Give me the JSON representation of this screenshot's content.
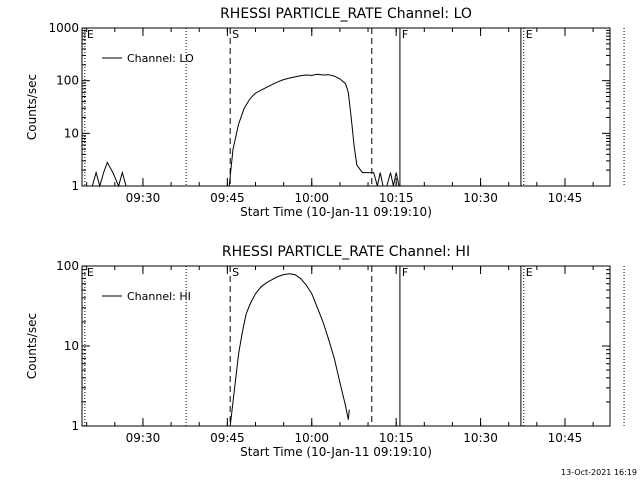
{
  "footer": "13-Oct-2021 16:19",
  "chart_data": [
    {
      "type": "line",
      "title": "RHESSI PARTICLE_RATE Channel: LO",
      "xlabel": "Start Time (10-Jan-11 09:19:10)",
      "ylabel": "Counts/sec",
      "y_scale": "log",
      "ylim": [
        1,
        1000
      ],
      "y_ticks": [
        "1",
        "10",
        "100",
        "1000"
      ],
      "x_ticks": [
        "09:30",
        "09:45",
        "10:00",
        "10:15",
        "10:30",
        "10:45"
      ],
      "xlim": [
        "09:19:10",
        "10:53:00"
      ],
      "legend": "top-left",
      "series": [
        {
          "name": "Channel: LO",
          "points": [
            [
              "09:21:00",
              1
            ],
            [
              "09:21:40",
              1.8
            ],
            [
              "09:22:20",
              1
            ],
            [
              "09:23:00",
              1.8
            ],
            [
              "09:23:40",
              2.8
            ],
            [
              "09:24:40",
              1.8
            ],
            [
              "09:25:40",
              1
            ],
            [
              "09:26:20",
              1.8
            ],
            [
              "09:27:00",
              1
            ],
            [
              "09:45:20",
              1
            ],
            [
              "09:46:00",
              5
            ],
            [
              "09:47:00",
              15
            ],
            [
              "09:48:00",
              30
            ],
            [
              "09:49:00",
              45
            ],
            [
              "09:50:00",
              58
            ],
            [
              "09:51:00",
              66
            ],
            [
              "09:52:00",
              75
            ],
            [
              "09:53:00",
              85
            ],
            [
              "09:54:00",
              95
            ],
            [
              "09:55:00",
              105
            ],
            [
              "09:56:00",
              112
            ],
            [
              "09:57:00",
              118
            ],
            [
              "09:58:00",
              124
            ],
            [
              "09:59:00",
              128
            ],
            [
              "10:00:00",
              126
            ],
            [
              "10:01:00",
              132
            ],
            [
              "10:02:00",
              128
            ],
            [
              "10:03:00",
              130
            ],
            [
              "10:04:00",
              122
            ],
            [
              "10:05:00",
              108
            ],
            [
              "10:06:00",
              88
            ],
            [
              "10:06:30",
              60
            ],
            [
              "10:07:00",
              20
            ],
            [
              "10:07:30",
              6
            ],
            [
              "10:08:00",
              2.5
            ],
            [
              "10:09:00",
              1.8
            ],
            [
              "10:10:00",
              1.8
            ],
            [
              "10:11:00",
              1.8
            ],
            [
              "10:11:40",
              1
            ],
            [
              "10:12:10",
              1.8
            ],
            [
              "10:12:40",
              1
            ],
            [
              "10:13:20",
              1
            ],
            [
              "10:14:00",
              1.8
            ],
            [
              "10:14:30",
              1
            ],
            [
              "10:15:00",
              1.8
            ],
            [
              "10:15:30",
              1
            ]
          ]
        }
      ],
      "markers": [
        {
          "time": "09:19:40",
          "label": "E",
          "style": "dotted"
        },
        {
          "time": "09:37:40",
          "label": "",
          "style": "dotted"
        },
        {
          "time": "09:45:30",
          "label": "S",
          "style": "dashed"
        },
        {
          "time": "10:10:40",
          "label": "",
          "style": "dashed"
        },
        {
          "time": "10:15:40",
          "label": "F",
          "style": "solid"
        },
        {
          "time": "10:37:10",
          "label": "",
          "style": "solid"
        },
        {
          "time": "10:37:40",
          "label": "E",
          "style": "dotted"
        },
        {
          "time": "10:55:30",
          "label": "",
          "style": "dotted"
        }
      ]
    },
    {
      "type": "line",
      "title": "RHESSI PARTICLE_RATE Channel: HI",
      "xlabel": "Start Time (10-Jan-11 09:19:10)",
      "ylabel": "Counts/sec",
      "y_scale": "log",
      "ylim": [
        1,
        100
      ],
      "y_ticks": [
        "1",
        "10",
        "100"
      ],
      "x_ticks": [
        "09:30",
        "09:45",
        "10:00",
        "10:15",
        "10:30",
        "10:45"
      ],
      "xlim": [
        "09:19:10",
        "10:53:00"
      ],
      "legend": "top-left",
      "series": [
        {
          "name": "Channel: HI",
          "points": [
            [
              "09:45:30",
              1
            ],
            [
              "09:46:00",
              2
            ],
            [
              "09:46:30",
              4
            ],
            [
              "09:47:00",
              8
            ],
            [
              "09:47:40",
              15
            ],
            [
              "09:48:20",
              25
            ],
            [
              "09:49:00",
              33
            ],
            [
              "09:50:00",
              45
            ],
            [
              "09:51:00",
              55
            ],
            [
              "09:52:00",
              62
            ],
            [
              "09:53:00",
              68
            ],
            [
              "09:54:00",
              74
            ],
            [
              "09:55:00",
              78
            ],
            [
              "09:56:00",
              80
            ],
            [
              "09:57:00",
              78
            ],
            [
              "09:58:00",
              70
            ],
            [
              "09:59:00",
              58
            ],
            [
              "10:00:00",
              45
            ],
            [
              "10:01:00",
              30
            ],
            [
              "10:02:00",
              20
            ],
            [
              "10:03:00",
              12
            ],
            [
              "10:04:00",
              7
            ],
            [
              "10:05:00",
              3.5
            ],
            [
              "10:06:00",
              1.8
            ],
            [
              "10:06:30",
              1.2
            ],
            [
              "10:06:40",
              1.6
            ]
          ]
        }
      ],
      "markers": [
        {
          "time": "09:19:40",
          "label": "E",
          "style": "dotted"
        },
        {
          "time": "09:37:40",
          "label": "",
          "style": "dotted"
        },
        {
          "time": "09:45:30",
          "label": "S",
          "style": "dashed"
        },
        {
          "time": "10:10:40",
          "label": "",
          "style": "dashed"
        },
        {
          "time": "10:15:40",
          "label": "F",
          "style": "solid"
        },
        {
          "time": "10:37:10",
          "label": "",
          "style": "solid"
        },
        {
          "time": "10:37:40",
          "label": "E",
          "style": "dotted"
        },
        {
          "time": "10:55:30",
          "label": "",
          "style": "dotted"
        }
      ]
    }
  ]
}
